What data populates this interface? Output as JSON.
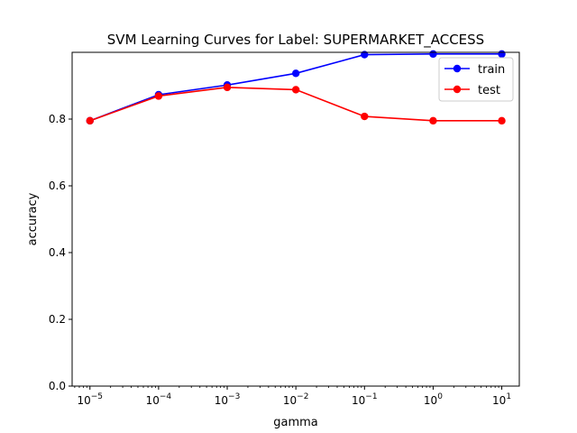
{
  "chart_data": {
    "type": "line",
    "title": "SVM Learning Curves for Label: SUPERMARKET_ACCESS",
    "xlabel": "gamma",
    "ylabel": "accuracy",
    "xscale": "log",
    "x": [
      1e-05,
      0.0001,
      0.001,
      0.01,
      0.1,
      1,
      10
    ],
    "xlim": [
      5.5e-06,
      18
    ],
    "ylim": [
      0,
      1.0
    ],
    "x_tick_labels": [
      {
        "base": "10",
        "exp": "−5"
      },
      {
        "base": "10",
        "exp": "−4"
      },
      {
        "base": "10",
        "exp": "−3"
      },
      {
        "base": "10",
        "exp": "−2"
      },
      {
        "base": "10",
        "exp": "−1"
      },
      {
        "base": "10",
        "exp": "0"
      },
      {
        "base": "10",
        "exp": "1"
      }
    ],
    "y_ticks": [
      0.0,
      0.2,
      0.4,
      0.6,
      0.8
    ],
    "y_tick_labels": [
      "0.0",
      "0.2",
      "0.4",
      "0.6",
      "0.8"
    ],
    "grid": false,
    "legend_position": "top-right",
    "series": [
      {
        "name": "train",
        "color": "#0000ff",
        "values": [
          0.795,
          0.873,
          0.902,
          0.937,
          0.993,
          0.995,
          0.995
        ]
      },
      {
        "name": "test",
        "color": "#ff0000",
        "values": [
          0.795,
          0.869,
          0.895,
          0.888,
          0.808,
          0.795,
          0.795
        ]
      }
    ]
  }
}
